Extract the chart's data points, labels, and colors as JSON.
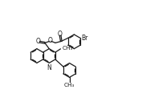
{
  "bg": "#ffffff",
  "lc": "#1a1a1a",
  "lw": 0.9,
  "fs": 5.5,
  "r": 0.115,
  "xlim": [
    0.0,
    1.82
  ],
  "ylim": [
    0.0,
    1.27
  ]
}
